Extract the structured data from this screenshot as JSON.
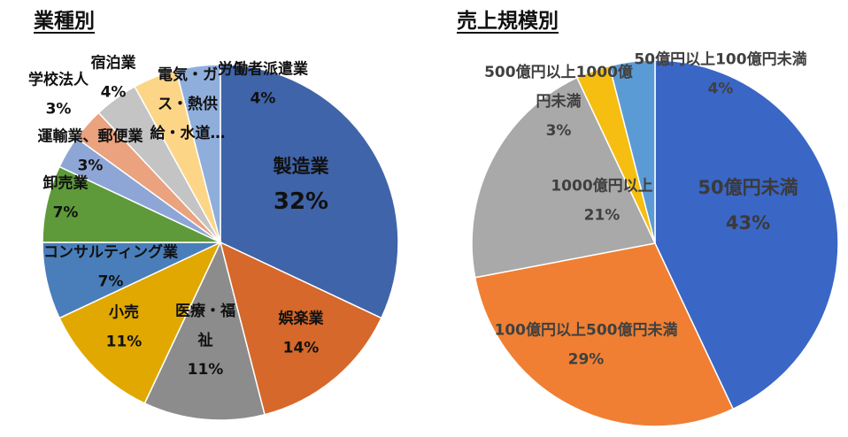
{
  "chart_data": [
    {
      "type": "pie",
      "title": "業種別",
      "categories": [
        "製造業",
        "娯楽業",
        "医療・福祉",
        "小売",
        "コンサルティング業",
        "卸売業",
        "運輸業、郵便業",
        "学校法人",
        "宿泊業",
        "電気・ガス・熱供給・水道…",
        "労働者派遣業"
      ],
      "labels": [
        [
          "製造業"
        ],
        [
          "娯楽業"
        ],
        [
          "医療・福",
          "祉"
        ],
        [
          "小売"
        ],
        [
          "コンサルティング業"
        ],
        [
          "卸売業"
        ],
        [
          "運輸業、郵便業"
        ],
        [
          "学校法人"
        ],
        [
          "宿泊業"
        ],
        [
          "電気・ガ",
          "ス・熱供",
          "給・水道…"
        ],
        [
          "労働者派遣業"
        ]
      ],
      "values": [
        32,
        14,
        11,
        11,
        7,
        7,
        3,
        3,
        4,
        4,
        4
      ],
      "percent_labels": [
        "32%",
        "14%",
        "11%",
        "11%",
        "7%",
        "7%",
        "3%",
        "3%",
        "4%",
        "",
        "4%"
      ],
      "colors": [
        "#3F64A9",
        "#D5682A",
        "#8C8C8C",
        "#E0A800",
        "#4A7EBB",
        "#5E9A3A",
        "#8EA6D6",
        "#EAA27F",
        "#C4C4C4",
        "#FCD587",
        "#8FAEDC"
      ]
    },
    {
      "type": "pie",
      "title": "売上規模別",
      "categories": [
        "50億円未満",
        "100億円以上500億円未満",
        "1000億円以上",
        "500億円以上1000億円未満",
        "50億円以上100億円未満"
      ],
      "labels": [
        [
          "50億円未満"
        ],
        [
          "100億円以上500億円未満"
        ],
        [
          "1000億円以上"
        ],
        [
          "500億円以上1000億",
          "円未満"
        ],
        [
          "50億円以上100億円未満"
        ]
      ],
      "values": [
        43,
        29,
        21,
        3,
        4
      ],
      "percent_labels": [
        "43%",
        "29%",
        "21%",
        "3%",
        "4%"
      ],
      "colors": [
        "#3A66C6",
        "#F07F33",
        "#A9A9A9",
        "#F5BE11",
        "#5B9BD5"
      ]
    }
  ]
}
